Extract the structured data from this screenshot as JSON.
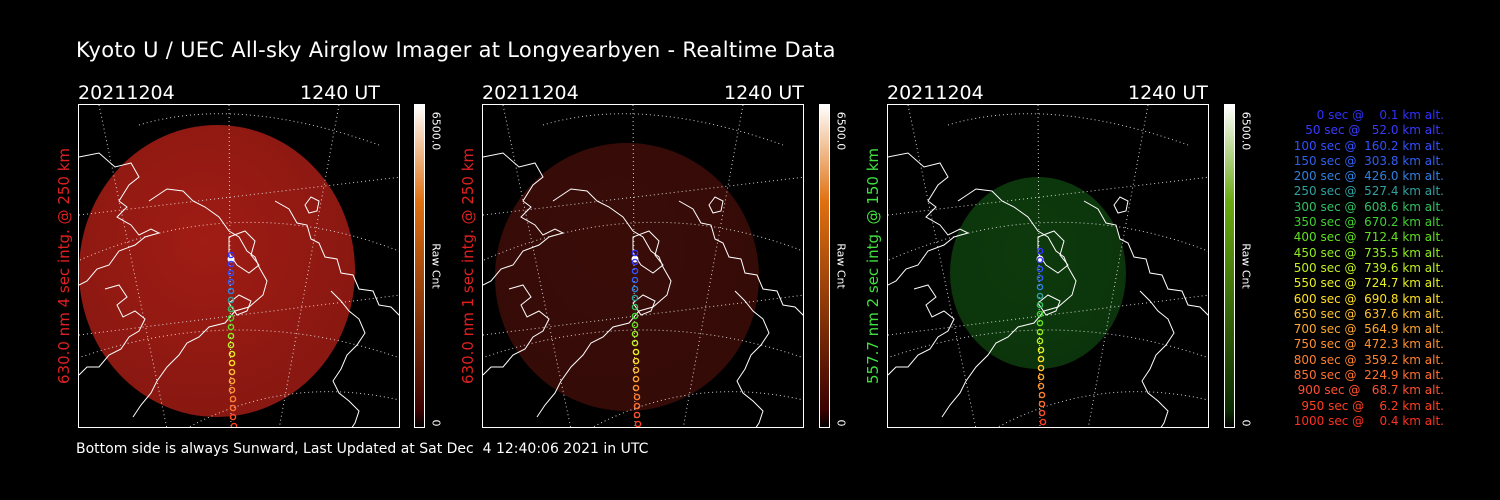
{
  "title": "Kyoto U / UEC All-sky Airglow Imager at Longyearbyen - Realtime Data",
  "footer": "Bottom side is always Sunward, Last Updated at Sat Dec  4 12:40:06 2021 in UTC",
  "panels": [
    {
      "date": "20211204",
      "time": "1240 UT",
      "side_label": "630.0 nm 4 sec intg. @ 250 km",
      "label_color": "#e02020",
      "cbar_max": "6500.0",
      "cbar_min": "0",
      "cbar_unit": "Raw Cnt",
      "glow_color": "#a01c14",
      "glow_strength": 0.85,
      "cbar_top": "#ffffff",
      "cbar_mid": "#e07010",
      "cbar_bottom": "#3a0000"
    },
    {
      "date": "20211204",
      "time": "1240 UT",
      "side_label": "630.0 nm 1 sec intg. @ 250 km",
      "label_color": "#e02020",
      "cbar_max": "6500.0",
      "cbar_min": "0",
      "cbar_unit": "Raw Cnt",
      "glow_color": "#3a0c08",
      "glow_strength": 0.9,
      "cbar_top": "#ffffff",
      "cbar_mid": "#e07010",
      "cbar_bottom": "#3a0000"
    },
    {
      "date": "20211204",
      "time": "1240 UT",
      "side_label": "557.7 nm 2 sec intg. @ 150 km",
      "label_color": "#40e040",
      "cbar_max": "6500.0",
      "cbar_min": "0",
      "cbar_unit": "Raw Cnt",
      "glow_color": "#0d3a0d",
      "glow_strength": 0.9,
      "cbar_top": "#ffffff",
      "cbar_mid": "#6aaa10",
      "cbar_bottom": "#0a2a00"
    }
  ],
  "trajectory": [
    {
      "label": "   0 sec @    0.1 km alt.",
      "color": "#3030ff"
    },
    {
      "label": "  50 sec @   52.0 km alt.",
      "color": "#3a3aff"
    },
    {
      "label": " 100 sec @  160.2 km alt.",
      "color": "#3050ff"
    },
    {
      "label": " 150 sec @  303.8 km alt.",
      "color": "#3060f0"
    },
    {
      "label": " 200 sec @  426.0 km alt.",
      "color": "#3080e0"
    },
    {
      "label": " 250 sec @  527.4 km alt.",
      "color": "#30a0a0"
    },
    {
      "label": " 300 sec @  608.6 km alt.",
      "color": "#30c060"
    },
    {
      "label": " 350 sec @  670.2 km alt.",
      "color": "#40d030"
    },
    {
      "label": " 400 sec @  712.4 km alt.",
      "color": "#60e020"
    },
    {
      "label": " 450 sec @  735.5 km alt.",
      "color": "#90ee20"
    },
    {
      "label": " 500 sec @  739.6 km alt.",
      "color": "#c0f020"
    },
    {
      "label": " 550 sec @  724.7 km alt.",
      "color": "#e8f020"
    },
    {
      "label": " 600 sec @  690.8 km alt.",
      "color": "#ffe020"
    },
    {
      "label": " 650 sec @  637.6 km alt.",
      "color": "#ffc030"
    },
    {
      "label": " 700 sec @  564.9 km alt.",
      "color": "#ffa830"
    },
    {
      "label": " 750 sec @  472.3 km alt.",
      "color": "#ff9030"
    },
    {
      "label": " 800 sec @  359.2 km alt.",
      "color": "#ff8030"
    },
    {
      "label": " 850 sec @  224.9 km alt.",
      "color": "#ff7030"
    },
    {
      "label": " 900 sec @   68.7 km alt.",
      "color": "#ff5030"
    },
    {
      "label": " 950 sec @    6.2 km alt.",
      "color": "#ff4020"
    },
    {
      "label": "1000 sec @    0.4 km alt.",
      "color": "#ff3020"
    }
  ]
}
